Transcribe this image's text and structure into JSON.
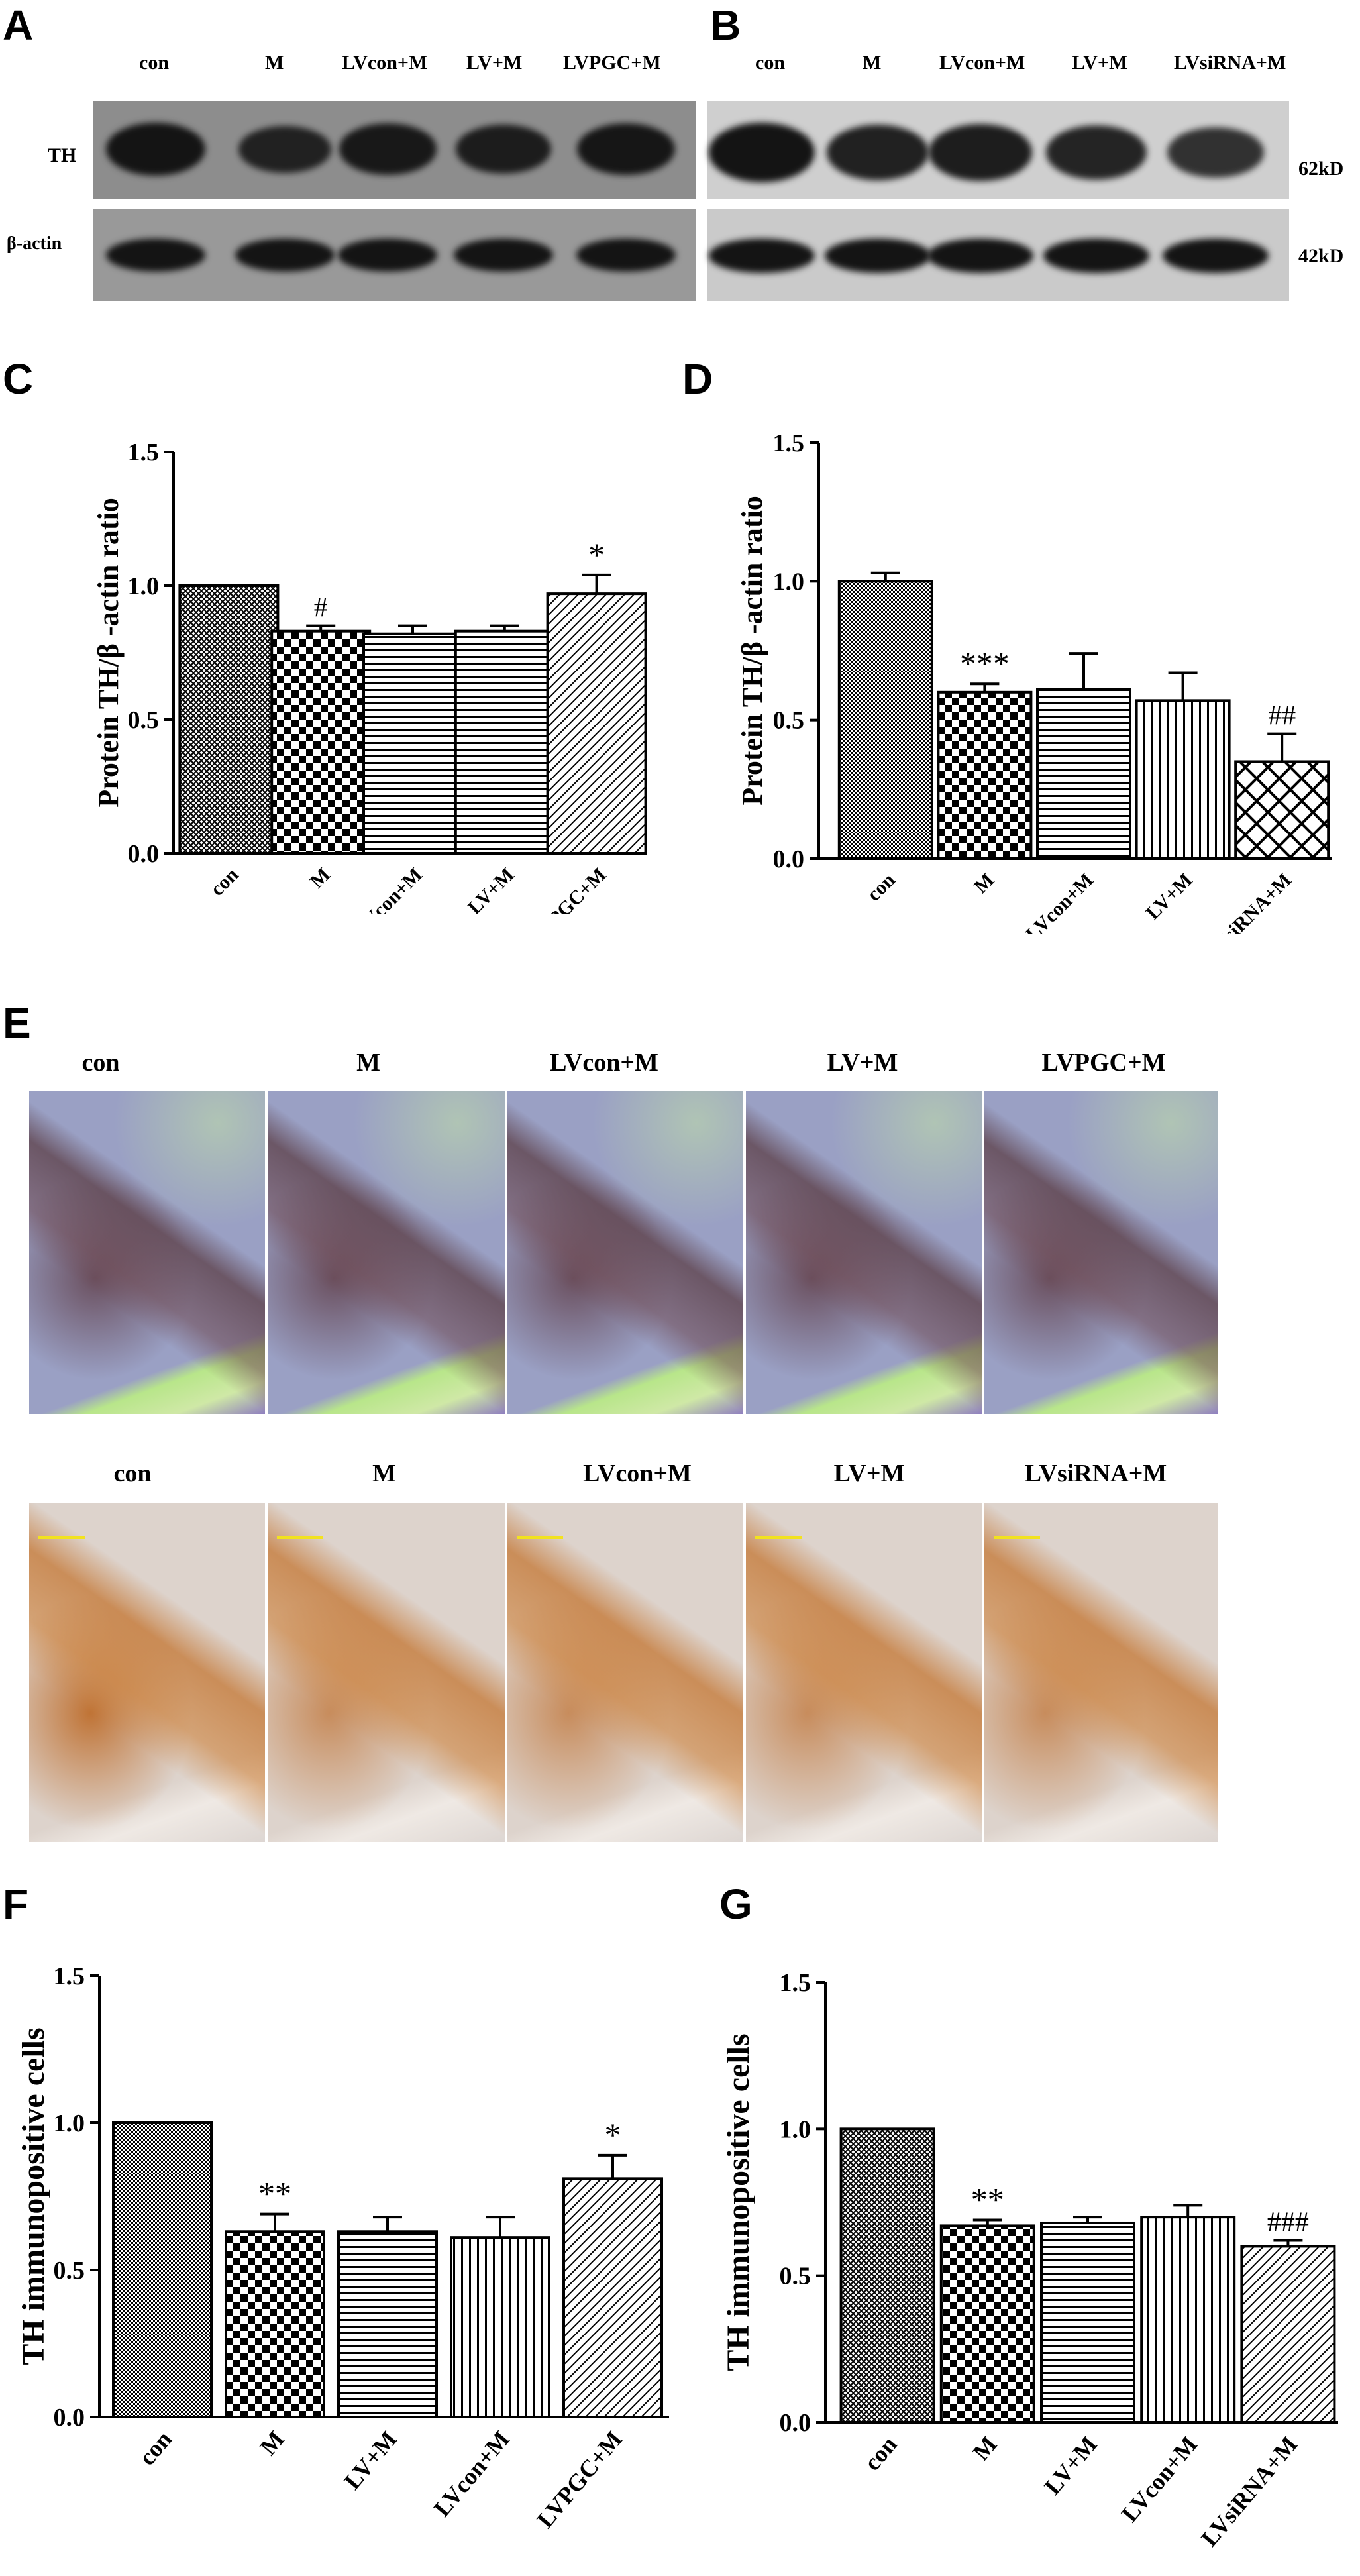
{
  "panels": {
    "A": {
      "label": "A",
      "lanes": [
        "con",
        "M",
        "LVcon+M",
        "LV+M",
        "LVPGC+M"
      ],
      "row_labels": [
        "TH",
        "β-actin"
      ],
      "th_intensity": [
        1.0,
        0.75,
        0.92,
        0.85,
        0.95
      ],
      "actin_intensity": [
        1.0,
        1.0,
        1.0,
        1.0,
        1.0
      ]
    },
    "B": {
      "label": "B",
      "lanes": [
        "con",
        "M",
        "LVcon+M",
        "LV+M",
        "LVsiRNA+M"
      ],
      "mw_labels": [
        "62kD",
        "42kD"
      ],
      "th_intensity": [
        1.0,
        0.85,
        0.88,
        0.8,
        0.65
      ],
      "actin_intensity": [
        1.0,
        1.0,
        1.0,
        1.0,
        1.0
      ]
    },
    "E": {
      "label": "E",
      "row1_labels": [
        "con",
        "M",
        "LVcon+M",
        "LV+M",
        "LVPGC+M"
      ],
      "row2_labels": [
        "con",
        "M",
        "LVcon+M",
        "LV+M",
        "LVsiRNA+M"
      ]
    }
  },
  "chart_data": [
    {
      "id": "C",
      "label": "C",
      "type": "bar",
      "ylabel": "Protein TH/β -actin ratio",
      "ylim": [
        0,
        1.5
      ],
      "yticks": [
        0.0,
        0.5,
        1.0,
        1.5
      ],
      "categories": [
        "con",
        "M",
        "LVcon+M",
        "LV+M",
        "LVPGC+M"
      ],
      "values": [
        1.0,
        0.83,
        0.82,
        0.83,
        0.97
      ],
      "errors": [
        0.0,
        0.02,
        0.03,
        0.02,
        0.07
      ],
      "annotations": [
        "",
        "#",
        "",
        "",
        "*"
      ],
      "patterns": [
        "crosshatch",
        "checker",
        "hlines",
        "hlines",
        "diag"
      ]
    },
    {
      "id": "D",
      "label": "D",
      "type": "bar",
      "ylabel": "Protein TH/β -actin ratio",
      "ylim": [
        0,
        1.5
      ],
      "yticks": [
        0.0,
        0.5,
        1.0,
        1.5
      ],
      "categories": [
        "con",
        "M",
        "LVcon+M",
        "LV+M",
        "LVsiRNA+M"
      ],
      "values": [
        1.0,
        0.6,
        0.61,
        0.57,
        0.35
      ],
      "errors": [
        0.03,
        0.03,
        0.13,
        0.1,
        0.1
      ],
      "annotations": [
        "",
        "***",
        "",
        "",
        "##"
      ],
      "patterns": [
        "dots",
        "checker",
        "hlines",
        "vlines",
        "bigcross"
      ]
    },
    {
      "id": "F",
      "label": "F",
      "type": "bar",
      "ylabel": "TH immunopositive cells",
      "ylim": [
        0,
        1.5
      ],
      "yticks": [
        0.0,
        0.5,
        1.0,
        1.5
      ],
      "categories": [
        "con",
        "M",
        "LV+M",
        "LVcon+M",
        "LVPGC+M"
      ],
      "values": [
        1.0,
        0.63,
        0.63,
        0.61,
        0.81
      ],
      "errors": [
        0.0,
        0.06,
        0.05,
        0.07,
        0.08
      ],
      "annotations": [
        "",
        "**",
        "",
        "",
        "*"
      ],
      "patterns": [
        "dots",
        "checker",
        "hlines",
        "vlines",
        "diag"
      ]
    },
    {
      "id": "G",
      "label": "G",
      "type": "bar",
      "ylabel": "TH immunopositive cells",
      "ylim": [
        0,
        1.5
      ],
      "yticks": [
        0.0,
        0.5,
        1.0,
        1.5
      ],
      "categories": [
        "con",
        "M",
        "LV+M",
        "LVcon+M",
        "LVsiRNA+M"
      ],
      "values": [
        1.0,
        0.67,
        0.68,
        0.7,
        0.6
      ],
      "errors": [
        0.0,
        0.02,
        0.02,
        0.04,
        0.02
      ],
      "annotations": [
        "",
        "**",
        "",
        "",
        "###"
      ],
      "patterns": [
        "crosshatch",
        "checker",
        "hlines",
        "vlines",
        "diag"
      ]
    }
  ]
}
